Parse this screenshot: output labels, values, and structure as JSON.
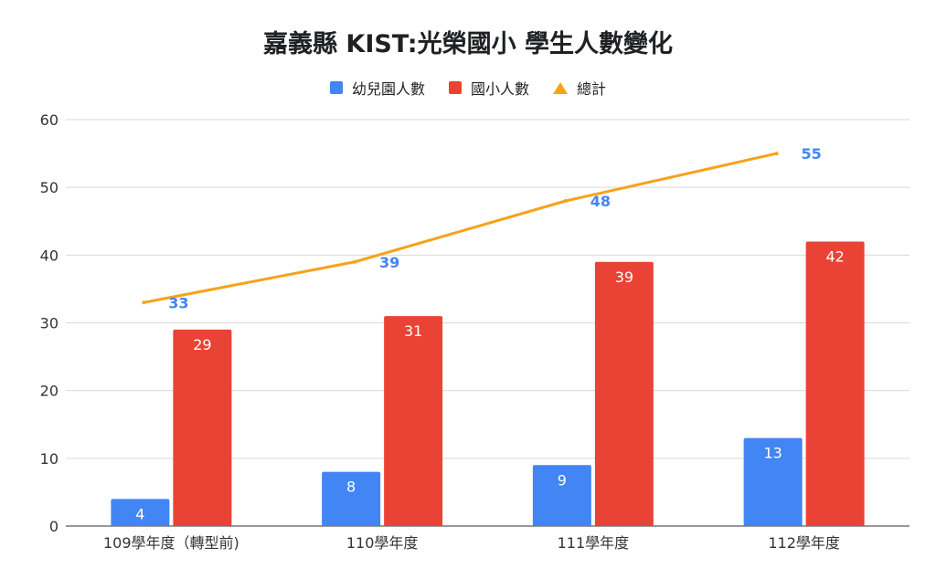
{
  "chart_data": {
    "type": "bar",
    "title": "嘉義縣 KIST:光榮國小 學生人數變化",
    "categories": [
      "109學年度（轉型前)",
      "110學年度",
      "111學年度",
      "112學年度"
    ],
    "series": [
      {
        "name": "幼兒園人數",
        "type": "bar",
        "color": "#4285f4",
        "values": [
          4,
          8,
          9,
          13
        ]
      },
      {
        "name": "國小人數",
        "type": "bar",
        "color": "#ea4335",
        "values": [
          29,
          31,
          39,
          42
        ]
      },
      {
        "name": "總計",
        "type": "line",
        "color": "#f7a21b",
        "values": [
          33,
          39,
          48,
          55
        ]
      }
    ],
    "ylim": [
      0,
      60
    ],
    "yticks": [
      "0",
      "10",
      "20",
      "30",
      "40",
      "50",
      "60"
    ],
    "grid": true,
    "legend_position": "top"
  }
}
